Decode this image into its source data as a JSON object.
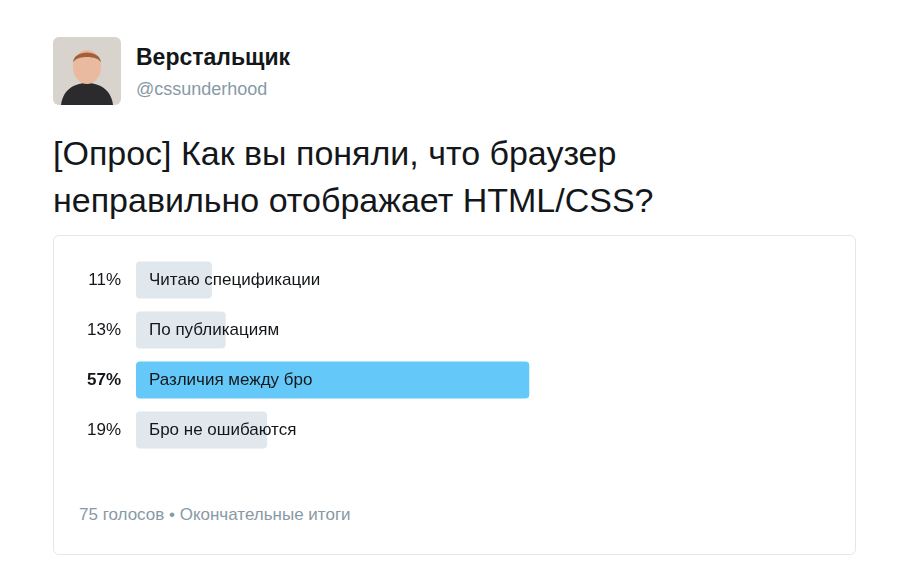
{
  "tweet": {
    "author": "Верстальщик",
    "handle": "@cssunderhood",
    "text": "[Опрос] Как вы поняли, что браузер неправильно отображает HTML/CSS?"
  },
  "chart_data": {
    "type": "bar",
    "orientation": "horizontal",
    "categories": [
      "Читаю спецификации",
      "По публикациям",
      "Различия между бро",
      "Бро не ошибаются"
    ],
    "values": [
      11,
      13,
      57,
      19
    ],
    "value_labels": [
      "11%",
      "13%",
      "57%",
      "19%"
    ],
    "colors": [
      "#e1e8ed",
      "#e1e8ed",
      "#64c8f8",
      "#e1e8ed"
    ],
    "xlim": [
      0,
      100
    ],
    "data_labels": true,
    "tick_labels": false,
    "grid": false
  },
  "footer": "75 голосов • Окончательные итоги"
}
